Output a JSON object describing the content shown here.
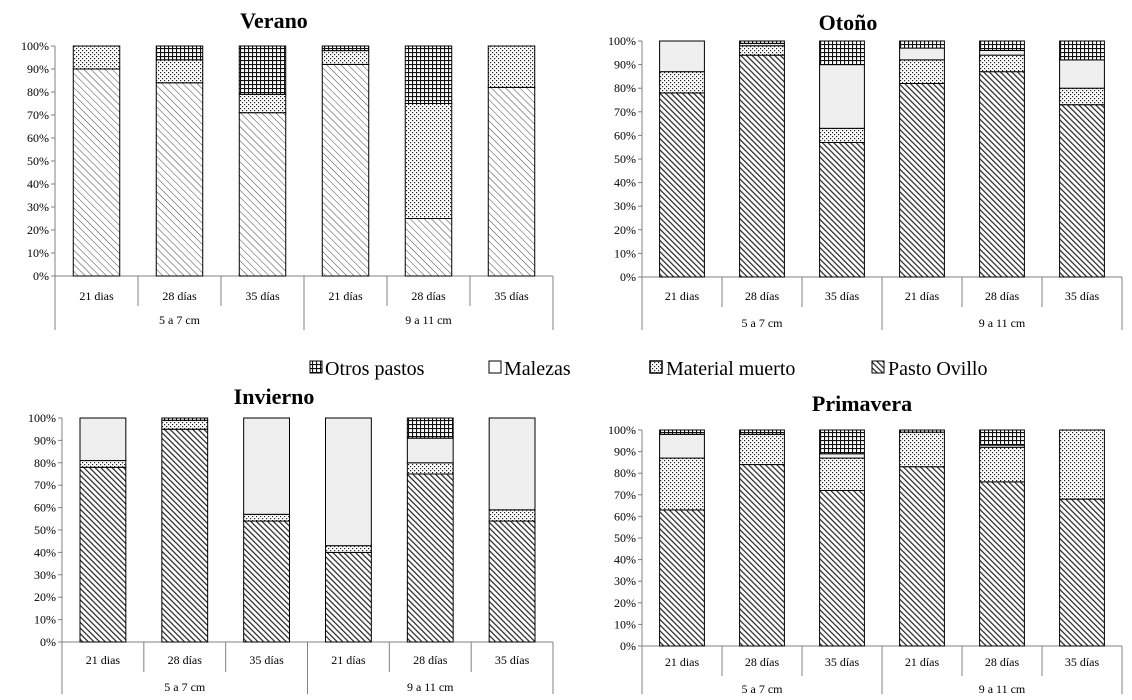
{
  "legend": {
    "items": [
      {
        "label": "Otros pastos",
        "pattern": "grid"
      },
      {
        "label": "Malezas",
        "pattern": "blank"
      },
      {
        "label": "Material muerto",
        "pattern": "dots"
      },
      {
        "label": "Pasto Ovillo",
        "pattern": "hatch"
      }
    ]
  },
  "colors": {
    "outline": "#000000",
    "axis": "#808080",
    "text": "#000000",
    "background": "#ffffff",
    "blank_fill": "#efefef"
  },
  "chart_data": [
    {
      "type": "bar",
      "stacked": true,
      "title": "Verano",
      "categories": [
        "21 dias",
        "28 días",
        "35 días",
        "21 días",
        "28 días",
        "35 días"
      ],
      "groups": [
        "5 a 7 cm",
        "9 a 11 cm"
      ],
      "y_ticks": [
        "0%",
        "10%",
        "20%",
        "30%",
        "40%",
        "50%",
        "60%",
        "70%",
        "80%",
        "90%",
        "100%"
      ],
      "ylim": [
        0,
        100
      ],
      "series": [
        {
          "name": "Pasto Ovillo",
          "pattern": "lighthatch",
          "values": [
            90,
            84,
            71,
            92,
            25,
            82
          ]
        },
        {
          "name": "Material muerto",
          "pattern": "dots",
          "values": [
            10,
            10,
            8,
            6,
            50,
            18
          ]
        },
        {
          "name": "Malezas",
          "pattern": "blank",
          "values": [
            0,
            0,
            0,
            0,
            0,
            0
          ]
        },
        {
          "name": "Otros pastos",
          "pattern": "grid",
          "values": [
            0,
            6,
            21,
            2,
            25,
            0
          ]
        }
      ]
    },
    {
      "type": "bar",
      "stacked": true,
      "title": "Otoño",
      "categories": [
        "21 dias",
        "28 días",
        "35 días",
        "21 días",
        "28 días",
        "35 días"
      ],
      "groups": [
        "5 a 7 cm",
        "9 a 11 cm"
      ],
      "y_ticks": [
        "0%",
        "10%",
        "20%",
        "30%",
        "40%",
        "50%",
        "60%",
        "70%",
        "80%",
        "90%",
        "100%"
      ],
      "ylim": [
        0,
        100
      ],
      "series": [
        {
          "name": "Pasto Ovillo",
          "pattern": "hatch",
          "values": [
            78,
            94,
            57,
            82,
            87,
            73
          ]
        },
        {
          "name": "Material muerto",
          "pattern": "dots",
          "values": [
            9,
            4,
            6,
            10,
            7,
            7
          ]
        },
        {
          "name": "Malezas",
          "pattern": "blank",
          "values": [
            13,
            1,
            27,
            5,
            2,
            12
          ]
        },
        {
          "name": "Otros pastos",
          "pattern": "grid",
          "values": [
            0,
            1,
            10,
            3,
            4,
            8
          ]
        }
      ]
    },
    {
      "type": "bar",
      "stacked": true,
      "title": "Invierno",
      "categories": [
        "21 dias",
        "28 días",
        "35 días",
        "21 días",
        "28 días",
        "35 días"
      ],
      "groups": [
        "5 a 7 cm",
        "9 a 11 cm"
      ],
      "y_ticks": [
        "0%",
        "10%",
        "20%",
        "30%",
        "40%",
        "50%",
        "60%",
        "70%",
        "80%",
        "90%",
        "100%"
      ],
      "ylim": [
        0,
        100
      ],
      "series": [
        {
          "name": "Pasto Ovillo",
          "pattern": "hatch",
          "values": [
            78,
            95,
            54,
            40,
            75,
            54
          ]
        },
        {
          "name": "Material muerto",
          "pattern": "dots",
          "values": [
            3,
            4,
            3,
            3,
            5,
            5
          ]
        },
        {
          "name": "Malezas",
          "pattern": "blank",
          "values": [
            19,
            0,
            43,
            57,
            11,
            41
          ]
        },
        {
          "name": "Otros pastos",
          "pattern": "grid",
          "values": [
            0,
            1,
            0,
            0,
            9,
            0
          ]
        }
      ]
    },
    {
      "type": "bar",
      "stacked": true,
      "title": "Primavera",
      "categories": [
        "21 dias",
        "28 días",
        "35 días",
        "21 días",
        "28 días",
        "35 días"
      ],
      "groups": [
        "5 a 7 cm",
        "9 a 11 cm"
      ],
      "y_ticks": [
        "0%",
        "10%",
        "20%",
        "30%",
        "40%",
        "50%",
        "60%",
        "70%",
        "80%",
        "90%",
        "100%"
      ],
      "ylim": [
        0,
        100
      ],
      "series": [
        {
          "name": "Pasto Ovillo",
          "pattern": "hatch",
          "values": [
            63,
            84,
            72,
            83,
            76,
            68
          ]
        },
        {
          "name": "Material muerto",
          "pattern": "dots",
          "values": [
            24,
            14,
            15,
            16,
            16,
            32
          ]
        },
        {
          "name": "Malezas",
          "pattern": "blank",
          "values": [
            11,
            0,
            2,
            0,
            1,
            0
          ]
        },
        {
          "name": "Otros pastos",
          "pattern": "grid",
          "values": [
            2,
            2,
            11,
            1,
            7,
            0
          ]
        }
      ]
    }
  ]
}
